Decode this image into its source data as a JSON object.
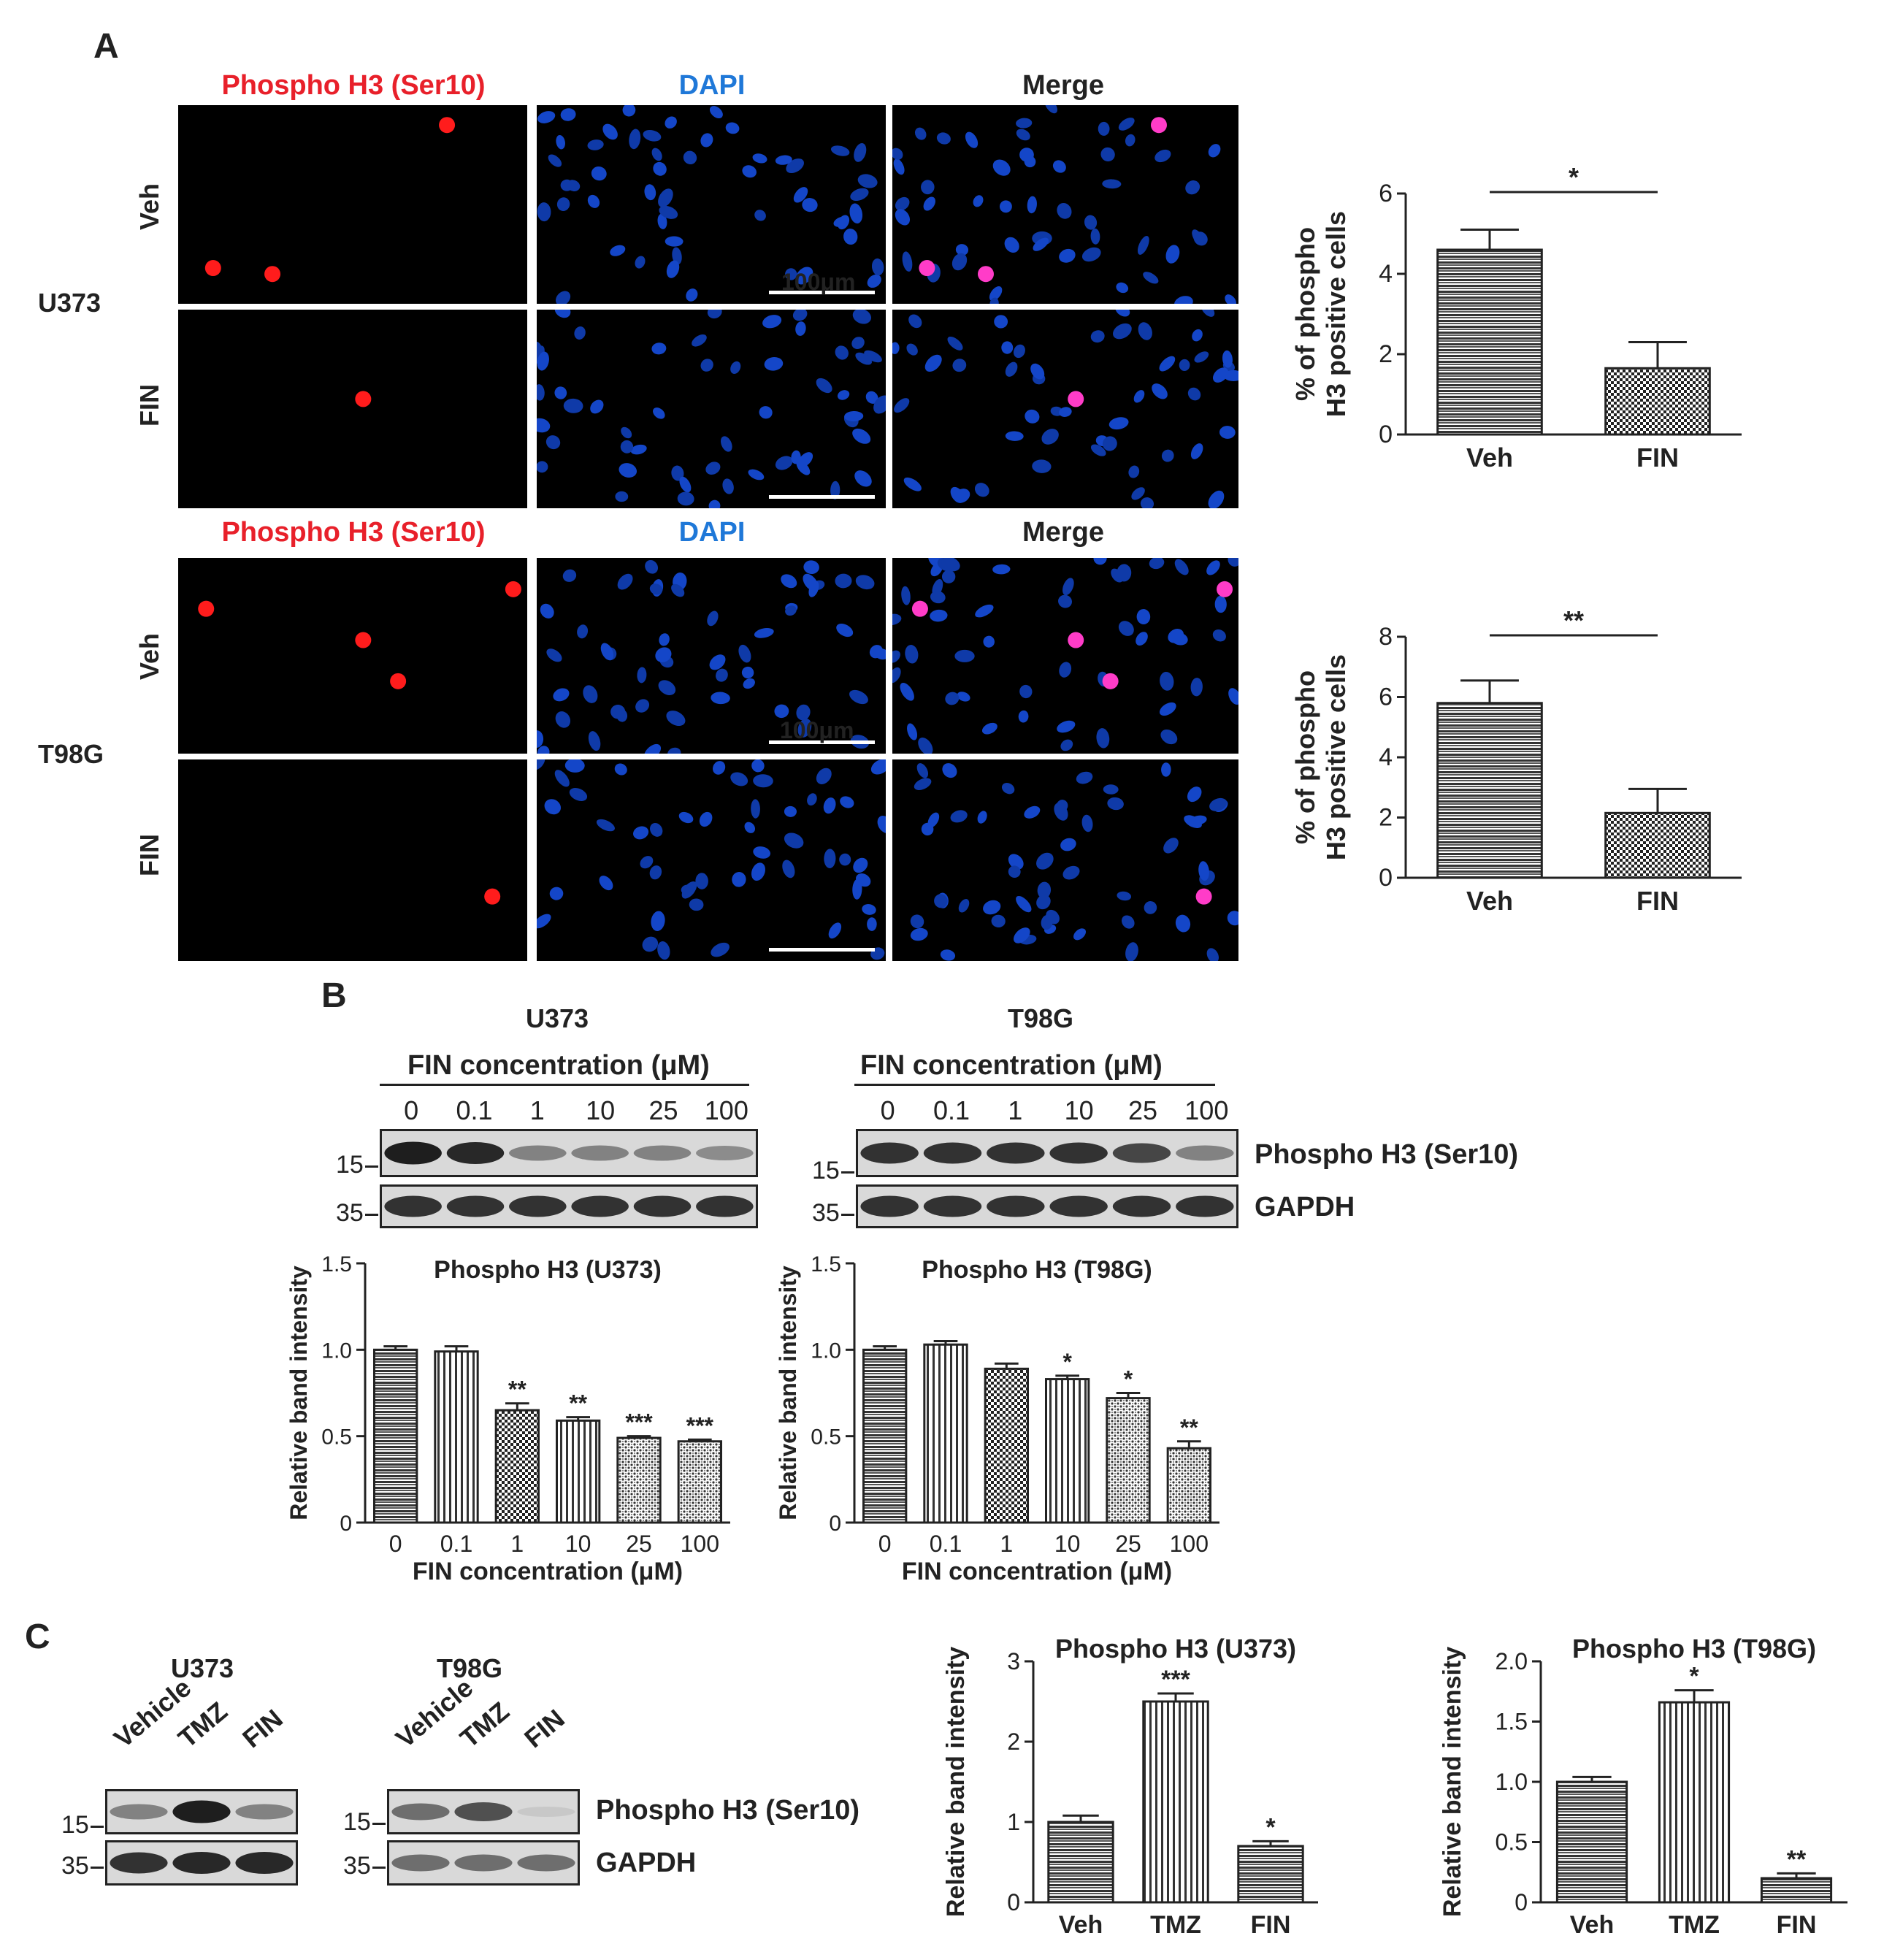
{
  "panels": {
    "A": {
      "letter": "A",
      "channels": [
        "Phospho H3 (Ser10)",
        "DAPI",
        "Merge"
      ],
      "scale_bar": "100μm",
      "groups": [
        {
          "cell_line": "U373",
          "rows": [
            "Veh",
            "FIN"
          ]
        },
        {
          "cell_line": "T98G",
          "rows": [
            "Veh",
            "FIN"
          ]
        }
      ]
    },
    "B": {
      "letter": "B",
      "blots": [
        {
          "cell_line": "U373",
          "header": "FIN concentration (μM)",
          "lanes": [
            "0",
            "0.1",
            "1",
            "10",
            "25",
            "100"
          ],
          "markers": [
            "15",
            "35"
          ]
        },
        {
          "cell_line": "T98G",
          "header": "FIN concentration (μM)",
          "lanes": [
            "0",
            "0.1",
            "1",
            "10",
            "25",
            "100"
          ],
          "markers": [
            "15",
            "35"
          ]
        }
      ],
      "band_labels": [
        "Phospho H3 (Ser10)",
        "GAPDH"
      ]
    },
    "C": {
      "letter": "C",
      "blots": [
        {
          "cell_line": "U373",
          "lanes": [
            "Vehicle",
            "TMZ",
            "FIN"
          ],
          "markers": [
            "15",
            "35"
          ]
        },
        {
          "cell_line": "T98G",
          "lanes": [
            "Vehicle",
            "TMZ",
            "FIN"
          ],
          "markers": [
            "15",
            "35"
          ]
        }
      ],
      "band_labels": [
        "Phospho H3 (Ser10)",
        "GAPDH"
      ]
    }
  },
  "chart_data": [
    {
      "id": "A-U373",
      "type": "bar",
      "categories": [
        "Veh",
        "FIN"
      ],
      "values": [
        4.6,
        1.65
      ],
      "errors": [
        0.5,
        0.65
      ],
      "ylabel": "% of phospho H3 positive cells",
      "ylim": [
        0,
        6
      ],
      "yticks": [
        0,
        2,
        4,
        6
      ],
      "significance": {
        "bracket": [
          "Veh",
          "FIN"
        ],
        "label": "*"
      },
      "patterns": [
        "hlines",
        "checker"
      ]
    },
    {
      "id": "A-T98G",
      "type": "bar",
      "categories": [
        "Veh",
        "FIN"
      ],
      "values": [
        5.8,
        2.15
      ],
      "errors": [
        0.75,
        0.8
      ],
      "ylabel": "% of phospho H3 positive cells",
      "ylim": [
        0,
        8
      ],
      "yticks": [
        0,
        2,
        4,
        6,
        8
      ],
      "significance": {
        "bracket": [
          "Veh",
          "FIN"
        ],
        "label": "**"
      },
      "patterns": [
        "hlines",
        "checker"
      ]
    },
    {
      "id": "B-U373",
      "type": "bar",
      "title": "Phospho H3 (U373)",
      "categories": [
        "0",
        "0.1",
        "1",
        "10",
        "25",
        "100"
      ],
      "values": [
        1.0,
        0.99,
        0.65,
        0.59,
        0.49,
        0.47
      ],
      "errors": [
        0.02,
        0.03,
        0.04,
        0.02,
        0.01,
        0.01
      ],
      "stars": [
        "",
        "",
        "**",
        "**",
        "***",
        "***"
      ],
      "xlabel": "FIN concentration (μM)",
      "ylabel": "Relative band intensity",
      "ylim": [
        0,
        1.5
      ],
      "yticks": [
        "0",
        "0.5",
        "1.0",
        "1.5"
      ],
      "patterns": [
        "hlines",
        "vlines",
        "checker",
        "vlines",
        "dots",
        "dots"
      ]
    },
    {
      "id": "B-T98G",
      "type": "bar",
      "title": "Phospho H3 (T98G)",
      "categories": [
        "0",
        "0.1",
        "1",
        "10",
        "25",
        "100"
      ],
      "values": [
        1.0,
        1.03,
        0.89,
        0.83,
        0.72,
        0.43
      ],
      "errors": [
        0.02,
        0.02,
        0.03,
        0.02,
        0.03,
        0.04
      ],
      "stars": [
        "",
        "",
        "",
        "*",
        "*",
        "**"
      ],
      "xlabel": "FIN concentration (μM)",
      "ylabel": "Relative band intensity",
      "ylim": [
        0,
        1.5
      ],
      "yticks": [
        "0",
        "0.5",
        "1.0",
        "1.5"
      ],
      "patterns": [
        "hlines",
        "vlines",
        "checker",
        "vlines",
        "dots",
        "dots"
      ]
    },
    {
      "id": "C-U373",
      "type": "bar",
      "title": "Phospho H3 (U373)",
      "categories": [
        "Veh",
        "TMZ",
        "FIN"
      ],
      "values": [
        1.0,
        2.5,
        0.7
      ],
      "errors": [
        0.08,
        0.1,
        0.06
      ],
      "stars": [
        "",
        "***",
        "*"
      ],
      "ylabel": "Relative band intensity",
      "ylim": [
        0,
        3
      ],
      "yticks": [
        "0",
        "1",
        "2",
        "3"
      ],
      "patterns": [
        "hlines",
        "vlines",
        "hlines"
      ]
    },
    {
      "id": "C-T98G",
      "type": "bar",
      "title": "Phospho H3 (T98G)",
      "categories": [
        "Veh",
        "TMZ",
        "FIN"
      ],
      "values": [
        1.0,
        1.66,
        0.2
      ],
      "errors": [
        0.04,
        0.1,
        0.04
      ],
      "stars": [
        "",
        "*",
        "**"
      ],
      "ylabel": "Relative band intensity",
      "ylim": [
        0,
        2
      ],
      "yticks": [
        "0",
        "0.5",
        "1.0",
        "1.5",
        "2.0"
      ],
      "patterns": [
        "hlines",
        "vlines",
        "hlines"
      ]
    }
  ]
}
